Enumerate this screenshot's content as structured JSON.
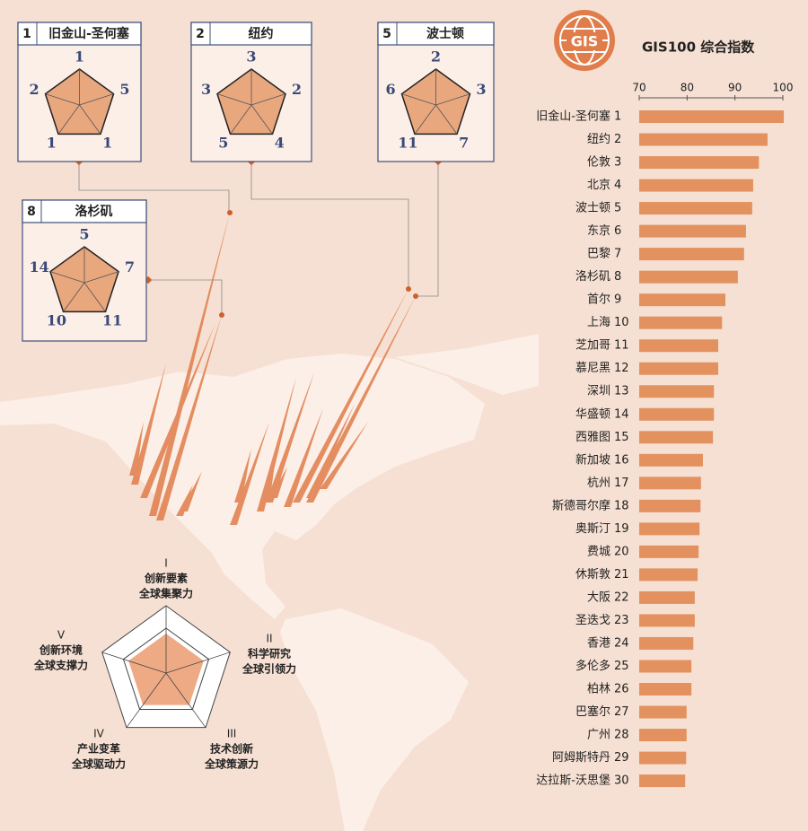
{
  "logo": "GIS",
  "chart_data": {
    "type": "bar",
    "orientation": "horizontal",
    "title": "GIS100 综合指数",
    "categories": [
      "旧金山-圣何塞",
      "纽约",
      "伦敦",
      "北京",
      "波士顿",
      "东京",
      "巴黎",
      "洛杉矶",
      "首尔",
      "上海",
      "芝加哥",
      "慕尼黑",
      "深圳",
      "华盛顿",
      "西雅图",
      "新加坡",
      "杭州",
      "斯德哥尔摩",
      "奥斯汀",
      "费城",
      "休斯敦",
      "大阪",
      "圣迭戈",
      "香港",
      "多伦多",
      "柏林",
      "巴塞尔",
      "广州",
      "阿姆斯特丹",
      "达拉斯-沃思堡"
    ],
    "ranks": [
      1,
      2,
      3,
      4,
      5,
      6,
      7,
      8,
      9,
      10,
      11,
      12,
      13,
      14,
      15,
      16,
      17,
      18,
      19,
      20,
      21,
      22,
      23,
      24,
      25,
      26,
      27,
      28,
      29,
      30
    ],
    "values": [
      100.2,
      96.8,
      95,
      93.8,
      93.6,
      92.3,
      91.9,
      90.6,
      88,
      87.3,
      86.5,
      86.5,
      85.6,
      85.6,
      85.4,
      83.3,
      82.9,
      82.8,
      82.6,
      82.4,
      82.2,
      81.6,
      81.6,
      81.3,
      80.9,
      80.9,
      79.9,
      79.9,
      79.8,
      79.6
    ],
    "xlim": [
      70,
      100
    ],
    "xticks": [
      70,
      80,
      90,
      100
    ],
    "color": "#e3925f"
  },
  "city_cards": [
    {
      "rank": 1,
      "name": "旧金山-圣何塞",
      "values": [
        1,
        5,
        1,
        1,
        2
      ]
    },
    {
      "rank": 2,
      "name": "纽约",
      "values": [
        3,
        2,
        4,
        5,
        3
      ]
    },
    {
      "rank": 5,
      "name": "波士顿",
      "values": [
        2,
        3,
        7,
        11,
        6
      ]
    },
    {
      "rank": 8,
      "name": "洛杉矶",
      "values": [
        5,
        7,
        11,
        10,
        14
      ]
    }
  ],
  "dimension_legend": [
    {
      "numeral": "I",
      "lines": [
        "创新要素",
        "全球集聚力"
      ]
    },
    {
      "numeral": "II",
      "lines": [
        "科学研究",
        "全球引领力"
      ]
    },
    {
      "numeral": "III",
      "lines": [
        "技术创新",
        "全球策源力"
      ]
    },
    {
      "numeral": "IV",
      "lines": [
        "产业变革",
        "全球驱动力"
      ]
    },
    {
      "numeral": "V",
      "lines": [
        "创新环境",
        "全球支撑力"
      ]
    }
  ]
}
